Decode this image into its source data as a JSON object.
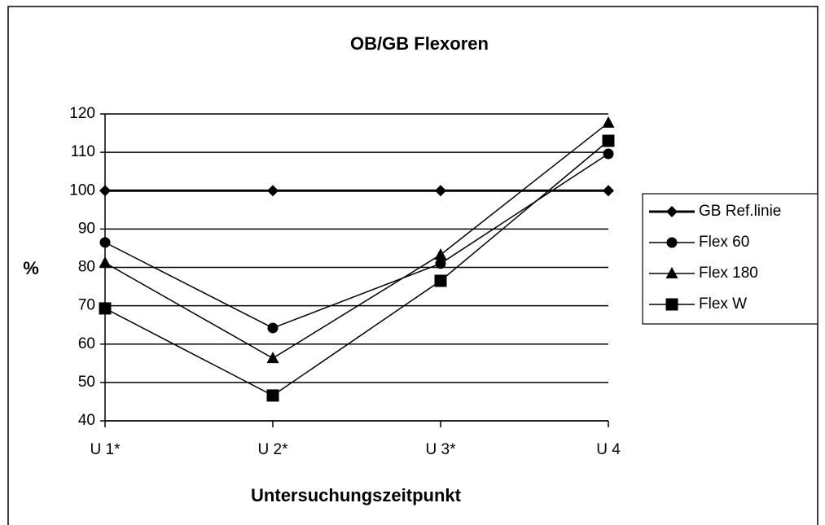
{
  "chart_data": {
    "type": "line",
    "title": "OB/GB Flexoren",
    "x_label": "Untersuchungszeitpunkt",
    "y_label": "%",
    "categories": [
      "U 1*",
      "U 2*",
      "U 3*",
      "U 4"
    ],
    "series": [
      {
        "name": "GB Ref.linie",
        "color": "#000000",
        "marker": "diamond",
        "line_width": 3,
        "values": [
          100,
          100,
          100,
          100
        ]
      },
      {
        "name": "Flex 60",
        "color": "#000000",
        "marker": "circle",
        "line_width": 1.5,
        "values": [
          86.5,
          64.2,
          81,
          109.6
        ]
      },
      {
        "name": "Flex 180",
        "color": "#000000",
        "marker": "triangle",
        "line_width": 1.5,
        "values": [
          81.2,
          56.3,
          83.3,
          117.7
        ]
      },
      {
        "name": "Flex W",
        "color": "#000000",
        "marker": "square",
        "line_width": 1.5,
        "values": [
          69.3,
          46.6,
          76.5,
          113
        ]
      }
    ],
    "ylim": [
      40,
      120
    ],
    "yticks": [
      40,
      50,
      60,
      70,
      80,
      90,
      100,
      110,
      120
    ],
    "grid": true,
    "legend": "right"
  }
}
